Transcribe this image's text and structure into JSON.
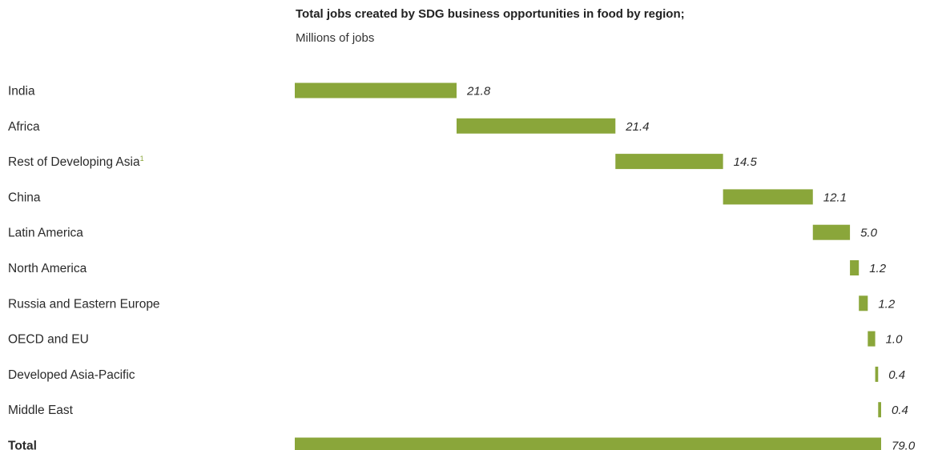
{
  "chart_data": {
    "type": "bar",
    "subtype": "waterfall",
    "title": "Total jobs created by SDG business opportunities in food by region;",
    "subtitle": "Millions of jobs",
    "orientation": "horizontal",
    "categories": [
      "India",
      "Africa",
      "Rest of Developing Asia",
      "China",
      "Latin America",
      "North America",
      "Russia and Eastern Europe",
      "OECD and EU",
      "Developed Asia-Pacific",
      "Middle East"
    ],
    "category_footnotes": {
      "Rest of Developing Asia": "1"
    },
    "values": [
      21.8,
      21.4,
      14.5,
      12.1,
      5.0,
      1.2,
      1.2,
      1.0,
      0.4,
      0.4
    ],
    "value_labels": [
      "21.8",
      "21.4",
      "14.5",
      "12.1",
      "5.0",
      "1.2",
      "1.2",
      "1.0",
      "0.4",
      "0.4"
    ],
    "total": {
      "label": "Total",
      "value": 79.0,
      "value_label": "79.0"
    },
    "xlim": [
      0,
      79.0
    ],
    "grid": false,
    "legend": "none",
    "bar_color": "#8aa63a"
  }
}
